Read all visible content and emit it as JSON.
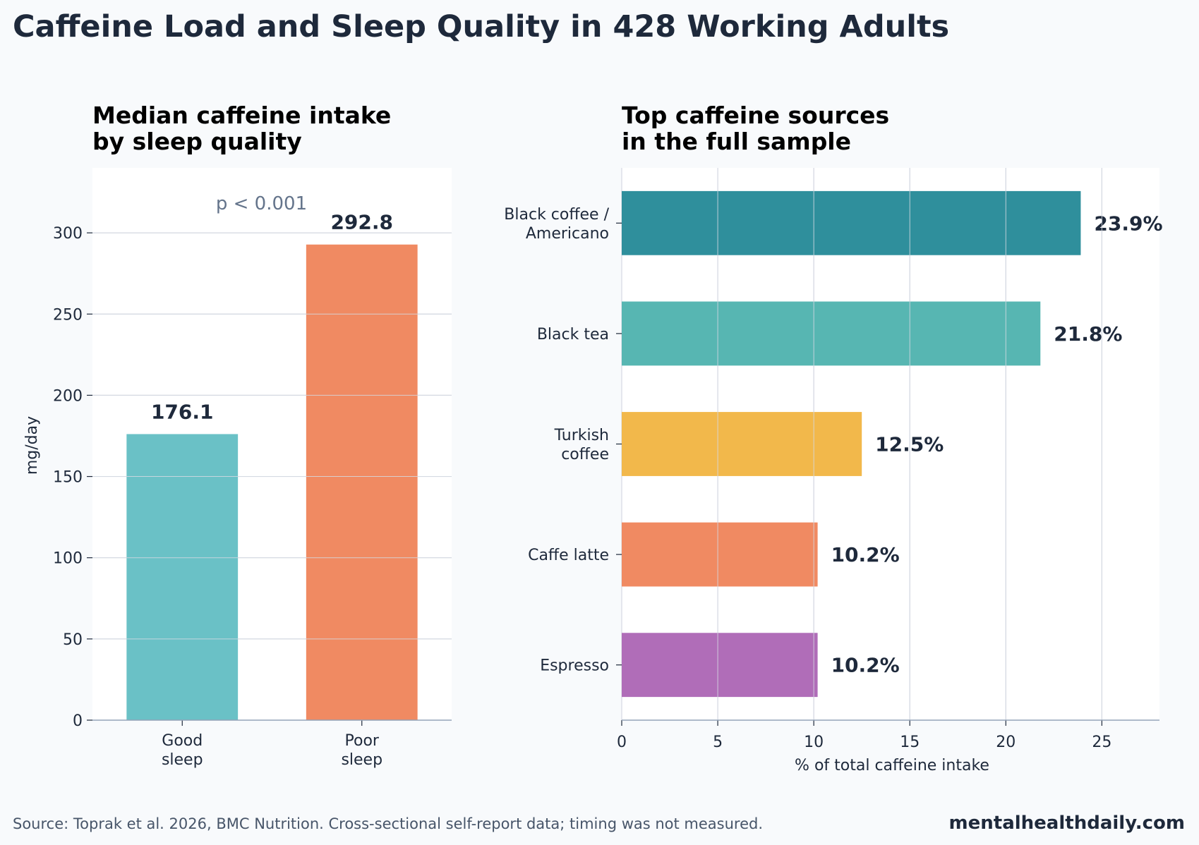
{
  "title": "Caffeine Load and Sleep Quality in 428 Working Adults",
  "footer": {
    "source": "Source: Toprak et al. 2026, BMC Nutrition. Cross-sectional self-report data; timing was not measured.",
    "brand": "mentalhealthdaily.com"
  },
  "chart_data": [
    {
      "type": "bar",
      "title": [
        "Median caffeine intake",
        "by sleep quality"
      ],
      "ylabel": "mg/day",
      "xlabel": "",
      "categories": [
        [
          "Good",
          "sleep"
        ],
        [
          "Poor",
          "sleep"
        ]
      ],
      "values": [
        176.1,
        292.8
      ],
      "value_labels": [
        "176.1",
        "292.8"
      ],
      "colors": [
        "#6ac1c6",
        "#f08a62"
      ],
      "ylim": [
        0,
        340
      ],
      "yticks": [
        0,
        50,
        100,
        150,
        200,
        250,
        300
      ],
      "grid": "y",
      "annotation": "p < 0.001"
    },
    {
      "type": "bar",
      "orientation": "horizontal",
      "title": [
        "Top caffeine sources",
        "in the full sample"
      ],
      "xlabel": "% of total caffeine intake",
      "ylabel": "",
      "categories": [
        [
          "Black coffee /",
          "Americano"
        ],
        [
          "Black tea"
        ],
        [
          "Turkish",
          "coffee"
        ],
        [
          "Caffe latte"
        ],
        [
          "Espresso"
        ]
      ],
      "values": [
        23.9,
        21.8,
        12.5,
        10.2,
        10.2
      ],
      "value_labels": [
        "23.9%",
        "21.8%",
        "12.5%",
        "10.2%",
        "10.2%"
      ],
      "colors": [
        "#2f8f9c",
        "#57b6b2",
        "#f2b84b",
        "#f08a62",
        "#b06db8"
      ],
      "xlim": [
        0,
        28
      ],
      "xticks": [
        0,
        5,
        10,
        15,
        20,
        25
      ],
      "grid": "x"
    }
  ]
}
